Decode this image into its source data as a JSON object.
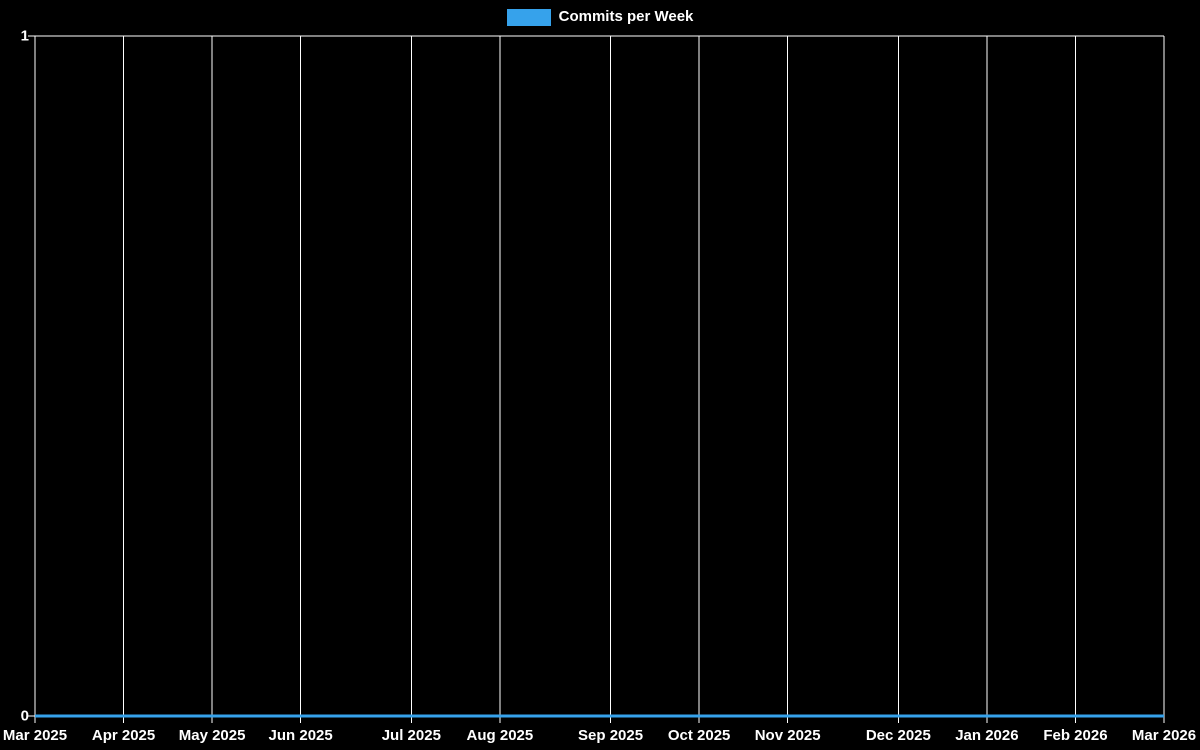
{
  "legend": {
    "label": "Commits per Week"
  },
  "colors": {
    "background": "#000000",
    "grid": "#ffffff",
    "text": "#ffffff",
    "line": "#36a2eb"
  },
  "chart_data": {
    "type": "line",
    "title": "Commits per Week",
    "legend_position": "top",
    "grid": true,
    "xlabel": "",
    "ylabel": "",
    "ylim": [
      0,
      1
    ],
    "y_tick_labels": [
      "0",
      "1"
    ],
    "x_tick_labels": [
      "Mar 2025",
      "Apr 2025",
      "May 2025",
      "Jun 2025",
      "Jul 2025",
      "Aug 2025",
      "Sep 2025",
      "Oct 2025",
      "Nov 2025",
      "Dec 2025",
      "Jan 2026",
      "Feb 2026",
      "Mar 2026"
    ],
    "x_tick_week_indices": [
      0,
      4,
      8,
      12,
      17,
      21,
      26,
      30,
      34,
      39,
      43,
      47,
      51
    ],
    "series": [
      {
        "name": "Commits per Week",
        "color": "#36a2eb",
        "values": [
          0,
          0,
          0,
          0,
          0,
          0,
          0,
          0,
          0,
          0,
          0,
          0,
          0,
          0,
          0,
          0,
          0,
          0,
          0,
          0,
          0,
          0,
          0,
          0,
          0,
          0,
          0,
          0,
          0,
          0,
          0,
          0,
          0,
          0,
          0,
          0,
          0,
          0,
          0,
          0,
          0,
          0,
          0,
          0,
          0,
          0,
          0,
          0,
          0,
          0,
          0,
          0
        ]
      }
    ]
  }
}
